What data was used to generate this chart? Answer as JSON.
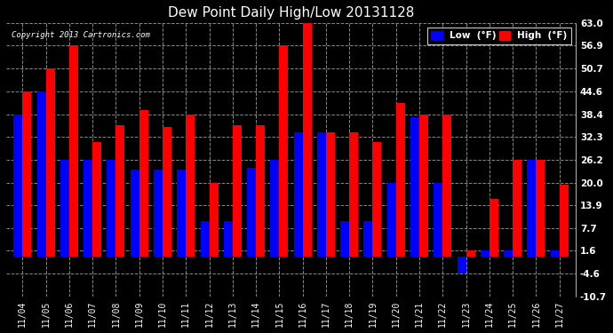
{
  "title": "Dew Point Daily High/Low 20131128",
  "copyright": "Copyright 2013 Cartronics.com",
  "dates": [
    "11/04",
    "11/05",
    "11/06",
    "11/07",
    "11/08",
    "11/09",
    "11/10",
    "11/11",
    "11/12",
    "11/13",
    "11/14",
    "11/15",
    "11/16",
    "11/17",
    "11/18",
    "11/19",
    "11/20",
    "11/21",
    "11/22",
    "11/23",
    "11/24",
    "11/25",
    "11/26",
    "11/27"
  ],
  "high": [
    44.6,
    50.7,
    57.0,
    31.0,
    35.5,
    39.5,
    35.0,
    38.4,
    20.0,
    35.5,
    35.5,
    56.9,
    63.0,
    33.5,
    33.5,
    31.0,
    41.5,
    38.4,
    38.4,
    1.6,
    15.5,
    26.2,
    26.2,
    19.5
  ],
  "low": [
    38.4,
    44.6,
    26.2,
    26.2,
    26.2,
    23.5,
    23.5,
    23.5,
    9.5,
    9.5,
    24.0,
    26.2,
    33.5,
    33.5,
    9.5,
    9.5,
    20.0,
    37.5,
    20.0,
    -4.6,
    1.6,
    1.6,
    26.2,
    1.6
  ],
  "ylim_min": -10.7,
  "ylim_max": 63.0,
  "yticks": [
    -10.7,
    -4.6,
    1.6,
    7.7,
    13.9,
    20.0,
    26.2,
    32.3,
    38.4,
    44.6,
    50.7,
    56.9,
    63.0
  ],
  "bg_color": "#000000",
  "plot_bg_color": "#000000",
  "grid_color": "#888888",
  "bar_width": 0.38,
  "low_color": "#0000ff",
  "high_color": "#ff0000",
  "legend_low_label": "Low  (°F)",
  "legend_high_label": "High  (°F)"
}
